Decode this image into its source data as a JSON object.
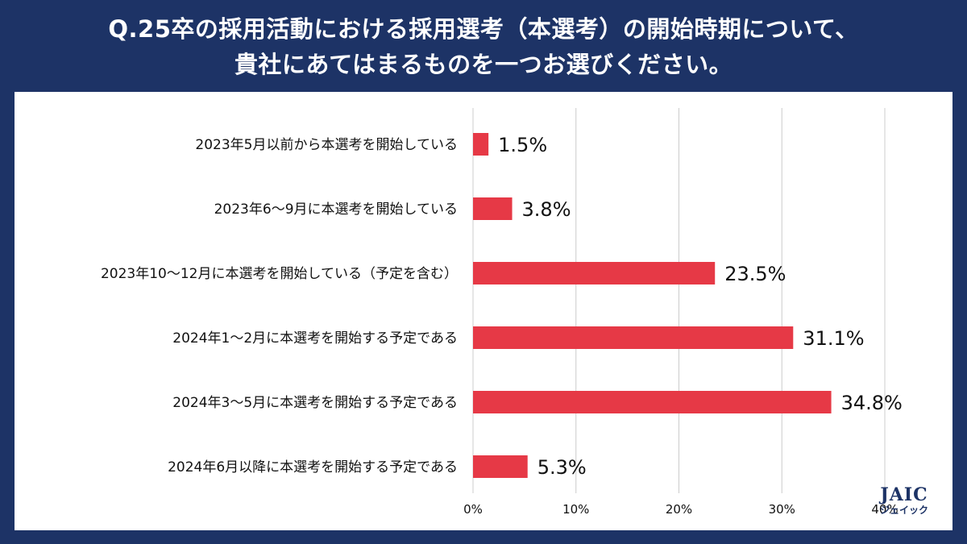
{
  "title": {
    "line1": "Q.25卒の採用活動における採用選考（本選考）の開始時期について、",
    "line2": "貴社にあてはまるものを一つお選びください。"
  },
  "logo": {
    "brand": "JAIC",
    "kana": "ジェイック"
  },
  "colors": {
    "bar": "#e63946",
    "background": "#1d3366",
    "grid": "#cccccc",
    "text": "#111111"
  },
  "chart_data": {
    "type": "bar",
    "orientation": "horizontal",
    "categories": [
      "2023年5月以前から本選考を開始している",
      "2023年6～9月に本選考を開始している",
      "2023年10～12月に本選考を開始している（予定を含む）",
      "2024年1～2月に本選考を開始する予定である",
      "2024年3～5月に本選考を開始する予定である",
      "2024年6月以降に本選考を開始する予定である"
    ],
    "values": [
      1.5,
      3.8,
      23.5,
      31.1,
      34.8,
      5.3
    ],
    "value_labels": [
      "1.5%",
      "3.8%",
      "23.5%",
      "31.1%",
      "34.8%",
      "5.3%"
    ],
    "xlim": [
      0,
      40
    ],
    "ticks": [
      0,
      10,
      20,
      30,
      40
    ],
    "tick_labels": [
      "0%",
      "10%",
      "20%",
      "30%",
      "40%"
    ],
    "grid": true
  }
}
